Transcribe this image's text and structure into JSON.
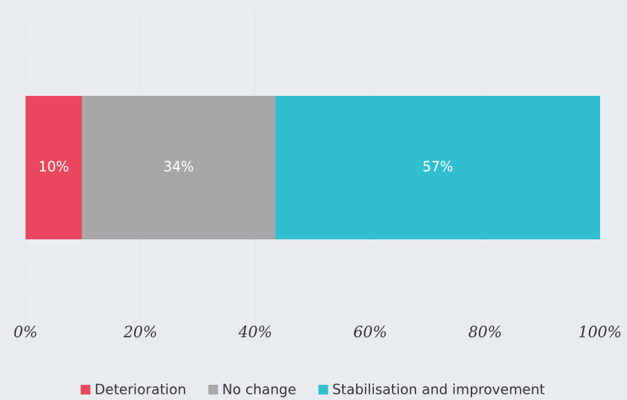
{
  "chart_data": {
    "type": "bar",
    "orientation": "horizontal",
    "stacked": true,
    "categories": [
      null
    ],
    "series": [
      {
        "name": "Deterioration",
        "color": "#e8475f",
        "values": [
          9.8
        ],
        "value_labels": [
          "10%"
        ]
      },
      {
        "name": "No change",
        "color": "#a7a7aa",
        "values": [
          33.7
        ],
        "value_labels": [
          "34%"
        ]
      },
      {
        "name": "Stabilisation and improvement",
        "color": "#31bfcf",
        "values": [
          56.5
        ],
        "value_labels": [
          "57%"
        ]
      }
    ],
    "xlim": [
      0,
      100
    ],
    "xticks": [
      {
        "value": 0,
        "label": "0%"
      },
      {
        "value": 20,
        "label": "20%"
      },
      {
        "value": 40,
        "label": "40%"
      },
      {
        "value": 60,
        "label": "60%"
      },
      {
        "value": 80,
        "label": "80%"
      },
      {
        "value": 100,
        "label": "100%"
      }
    ],
    "grid": true,
    "legend": "bottom"
  }
}
